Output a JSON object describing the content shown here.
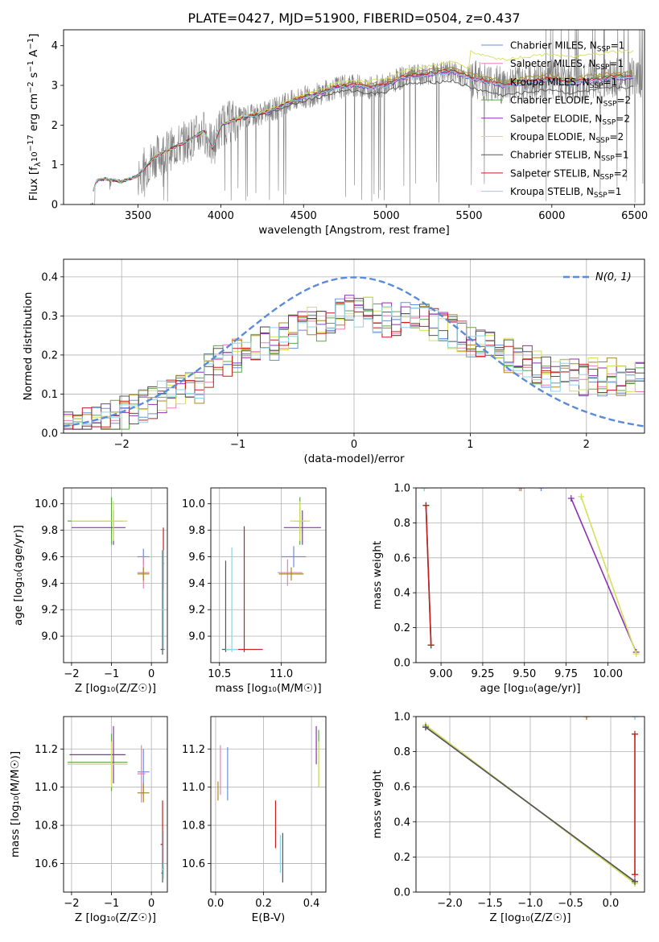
{
  "figure": {
    "title": "PLATE=0427, MJD=51900, FIBERID=0504, z=0.437"
  },
  "models": [
    {
      "name": "Chabrier MILES",
      "nssp": "1",
      "color": "#6a8fd8"
    },
    {
      "name": "Salpeter MILES",
      "nssp": "1",
      "color": "#e87fb6"
    },
    {
      "name": "Kroupa MILES",
      "nssp": "1",
      "color": "#a8892a"
    },
    {
      "name": "Chabrier ELODIE",
      "nssp": "2",
      "color": "#5aaa4a"
    },
    {
      "name": "Salpeter ELODIE",
      "nssp": "2",
      "color": "#8b2fb5"
    },
    {
      "name": "Kroupa ELODIE",
      "nssp": "2",
      "color": "#d4e05a"
    },
    {
      "name": "Chabrier STELIB",
      "nssp": "1",
      "color": "#555555"
    },
    {
      "name": "Salpeter STELIB",
      "nssp": "2",
      "color": "#c81e1e"
    },
    {
      "name": "Kroupa STELIB",
      "nssp": "1",
      "color": "#8fd3e6"
    }
  ],
  "chart_data": [
    {
      "id": "spectrum",
      "type": "line",
      "xlabel": "wavelength [Angstrom, rest frame]",
      "ylabel_main": "Flux [f",
      "ylabel_sub": "λ",
      "ylabel_rest": "10",
      "ylabel_exp1": "−17",
      "ylabel_mid": " erg cm",
      "ylabel_exp2": "−2",
      "ylabel_s": " s",
      "ylabel_exp3": "−1",
      "ylabel_A": " A",
      "ylabel_exp4": "−1",
      "ylabel_end": "]",
      "xlim": [
        3050,
        6560
      ],
      "ylim": [
        0,
        4.4
      ],
      "xticks": [
        "3500",
        "4000",
        "4500",
        "5000",
        "5500",
        "6000",
        "6500"
      ],
      "yticks": [
        "0",
        "1",
        "2",
        "3",
        "4"
      ],
      "data_color": "#808080",
      "data_range": [
        3200,
        6550
      ],
      "model_curve": {
        "x": [
          3200,
          3250,
          3300,
          3400,
          3500,
          3600,
          3700,
          3800,
          3900,
          3950,
          4000,
          4100,
          4200,
          4300,
          4400,
          4500,
          4600,
          4700,
          4800,
          4900,
          5000,
          5100,
          5200,
          5300,
          5400,
          5500,
          5600,
          5700,
          5800,
          5900,
          6000,
          6100,
          6200,
          6300,
          6400
        ],
        "y": [
          0.0,
          0.6,
          0.65,
          0.58,
          0.72,
          1.2,
          1.4,
          1.6,
          1.85,
          1.4,
          2.0,
          2.15,
          2.25,
          2.35,
          2.55,
          2.7,
          2.8,
          2.95,
          3.0,
          2.95,
          3.0,
          3.2,
          3.25,
          3.3,
          3.35,
          3.2,
          3.1,
          3.0,
          3.05,
          3.1,
          3.15,
          3.05,
          3.1,
          3.15,
          3.2
        ]
      },
      "legend_position": "upper right"
    },
    {
      "id": "residuals",
      "type": "step",
      "xlabel": "(data-model)/error",
      "ylabel": "Normed distribution",
      "xlim": [
        -2.5,
        2.5
      ],
      "ylim": [
        0,
        0.445
      ],
      "xticks": [
        "−2",
        "−1",
        "0",
        "1",
        "2"
      ],
      "xtick_values": [
        -2,
        -1,
        0,
        1,
        2
      ],
      "yticks": [
        "0.0",
        "0.1",
        "0.2",
        "0.3",
        "0.4"
      ],
      "ytick_values": [
        0,
        0.1,
        0.2,
        0.3,
        0.4
      ],
      "gaussian_label": "N(0, 1)",
      "gaussian_color": "#5b8bd8",
      "base_histogram": [
        0.02,
        0.02,
        0.03,
        0.03,
        0.04,
        0.04,
        0.05,
        0.06,
        0.07,
        0.08,
        0.09,
        0.1,
        0.12,
        0.13,
        0.12,
        0.16,
        0.18,
        0.19,
        0.2,
        0.21,
        0.22,
        0.24,
        0.23,
        0.25,
        0.26,
        0.27,
        0.28,
        0.27,
        0.29,
        0.3,
        0.31,
        0.3,
        0.32,
        0.3,
        0.29,
        0.28,
        0.31,
        0.3,
        0.29,
        0.28,
        0.27,
        0.26,
        0.25,
        0.24,
        0.23,
        0.22,
        0.21,
        0.2,
        0.19,
        0.18,
        0.17,
        0.16,
        0.15,
        0.16,
        0.15,
        0.14,
        0.15,
        0.14,
        0.15,
        0.14,
        0.15,
        0.14
      ],
      "legend_position": "upper right"
    },
    {
      "id": "age-vs-Z",
      "type": "errorbar",
      "xlabel": "Z [log₁₀(Z/Z☉)]",
      "ylabel": "age  [log₁₀(age/yr)]",
      "xlim": [
        -2.2,
        0.4
      ],
      "ylim": [
        8.8,
        10.12
      ],
      "xticks": [
        "−2",
        "−1",
        "0"
      ],
      "xtick_values": [
        -2,
        -1,
        0
      ],
      "yticks": [
        "9.0",
        "9.2",
        "9.4",
        "9.6",
        "9.8",
        "10.0"
      ],
      "ytick_values": [
        9.0,
        9.2,
        9.4,
        9.6,
        9.8,
        10.0
      ],
      "points": [
        {
          "m": 0,
          "x": -0.2,
          "y": 9.6,
          "xerr": [
            0.15,
            0.15
          ],
          "yerr": [
            0.06,
            0.06
          ]
        },
        {
          "m": 1,
          "x": -0.2,
          "y": 9.48,
          "xerr": [
            0.15,
            0.15
          ],
          "yerr": [
            0.12,
            0.12
          ]
        },
        {
          "m": 2,
          "x": -0.2,
          "y": 9.47,
          "xerr": [
            0.15,
            0.15
          ],
          "yerr": [
            0.05,
            0.05
          ]
        },
        {
          "m": 3,
          "x": -1.0,
          "y": 9.87,
          "xerr": [
            1.1,
            0.3
          ],
          "yerr": [
            0.18,
            0.18
          ]
        },
        {
          "m": 4,
          "x": -0.95,
          "y": 9.82,
          "xerr": [
            1.05,
            0.3
          ],
          "yerr": [
            0.13,
            0.13
          ]
        },
        {
          "m": 5,
          "x": -0.95,
          "y": 9.87,
          "xerr": [
            1.05,
            0.35
          ],
          "yerr": [
            0.15,
            0.15
          ]
        },
        {
          "m": 6,
          "x": 0.28,
          "y": 8.9,
          "xerr": [
            0.05,
            0.05
          ],
          "yerr": [
            0.04,
            0.75
          ]
        },
        {
          "m": 7,
          "x": 0.3,
          "y": 9.55,
          "xerr": [
            0.02,
            0.02
          ],
          "yerr": [
            0.2,
            0.27
          ]
        },
        {
          "m": 8,
          "x": 0.3,
          "y": 9.2,
          "xerr": [
            0.03,
            0.03
          ],
          "yerr": [
            0.3,
            0.45
          ]
        }
      ]
    },
    {
      "id": "age-vs-mass",
      "type": "errorbar",
      "xlabel": "mass [log₁₀(M/M☉)]",
      "ylabel": "",
      "xlim": [
        10.43,
        11.36
      ],
      "ylim": [
        8.8,
        10.12
      ],
      "xticks": [
        "10.5",
        "11.0"
      ],
      "xtick_values": [
        10.5,
        11.0
      ],
      "yticks": [
        "9.0",
        "9.2",
        "9.4",
        "9.6",
        "9.8",
        "10.0"
      ],
      "ytick_values": [
        9.0,
        9.2,
        9.4,
        9.6,
        9.8,
        10.0
      ],
      "points": [
        {
          "m": 0,
          "x": 11.1,
          "y": 9.6,
          "xerr": [
            0.1,
            0.1
          ],
          "yerr": [
            0.08,
            0.08
          ]
        },
        {
          "m": 1,
          "x": 11.05,
          "y": 9.48,
          "xerr": [
            0.08,
            0.12
          ],
          "yerr": [
            0.1,
            0.1
          ]
        },
        {
          "m": 2,
          "x": 11.08,
          "y": 9.47,
          "xerr": [
            0.1,
            0.1
          ],
          "yerr": [
            0.05,
            0.05
          ]
        },
        {
          "m": 3,
          "x": 11.15,
          "y": 9.87,
          "xerr": [
            0.05,
            0.05
          ],
          "yerr": [
            0.18,
            0.18
          ]
        },
        {
          "m": 4,
          "x": 11.17,
          "y": 9.82,
          "xerr": [
            0.15,
            0.15
          ],
          "yerr": [
            0.13,
            0.13
          ]
        },
        {
          "m": 5,
          "x": 11.15,
          "y": 9.87,
          "xerr": [
            0.08,
            0.08
          ],
          "yerr": [
            0.15,
            0.15
          ]
        },
        {
          "m": 6,
          "x": 10.55,
          "y": 8.9,
          "xerr": [
            0.03,
            0.03
          ],
          "yerr": [
            0.02,
            0.67
          ]
        },
        {
          "m": 7,
          "x": 10.7,
          "y": 8.9,
          "xerr": [
            0.15,
            0.15
          ],
          "yerr": [
            0.02,
            0.93
          ]
        },
        {
          "m": 8,
          "x": 10.6,
          "y": 8.9,
          "xerr": [
            0.05,
            0.05
          ],
          "yerr": [
            0.02,
            0.77
          ]
        }
      ]
    },
    {
      "id": "massweight-vs-age",
      "type": "line",
      "xlabel": "age  [log₁₀(age/yr)]",
      "ylabel": "mass weight",
      "xlim": [
        8.85,
        10.22
      ],
      "ylim": [
        0,
        1
      ],
      "xticks": [
        "9.00",
        "9.25",
        "9.50",
        "9.75",
        "10.00"
      ],
      "xtick_values": [
        9.0,
        9.25,
        9.5,
        9.75,
        10.0
      ],
      "yticks": [
        "0.0",
        "0.2",
        "0.4",
        "0.6",
        "0.8",
        "1.0"
      ],
      "ytick_values": [
        0,
        0.2,
        0.4,
        0.6,
        0.8,
        1.0
      ],
      "series": [
        {
          "m": 0,
          "points": [
            [
              9.6,
              1.0
            ]
          ]
        },
        {
          "m": 1,
          "points": [
            [
              9.47,
              1.0
            ]
          ]
        },
        {
          "m": 2,
          "points": [
            [
              9.48,
              1.0
            ]
          ]
        },
        {
          "m": 3,
          "points": [
            [
              8.9,
              1.0
            ]
          ]
        },
        {
          "m": 4,
          "points": [
            [
              9.78,
              0.94
            ],
            [
              10.17,
              0.06
            ]
          ]
        },
        {
          "m": 5,
          "points": [
            [
              9.84,
              0.95
            ],
            [
              10.17,
              0.05
            ]
          ]
        },
        {
          "m": 6,
          "points": [
            [
              8.91,
              0.9
            ],
            [
              8.94,
              0.1
            ]
          ]
        },
        {
          "m": 7,
          "points": [
            [
              8.91,
              0.9
            ],
            [
              8.94,
              0.1
            ]
          ]
        },
        {
          "m": 8,
          "points": [
            [
              8.9,
              1.0
            ]
          ]
        }
      ]
    },
    {
      "id": "mass-vs-Z",
      "type": "errorbar",
      "xlabel": "Z [log₁₀(Z/Z☉)]",
      "ylabel": "mass [log₁₀(M/M☉)]",
      "xlim": [
        -2.2,
        0.4
      ],
      "ylim": [
        10.45,
        11.37
      ],
      "xticks": [
        "−2",
        "−1",
        "0"
      ],
      "xtick_values": [
        -2,
        -1,
        0
      ],
      "yticks": [
        "10.6",
        "10.8",
        "11.0",
        "11.2"
      ],
      "ytick_values": [
        10.6,
        10.8,
        11.0,
        11.2
      ],
      "points": [
        {
          "m": 0,
          "x": -0.2,
          "y": 11.08,
          "xerr": [
            0.15,
            0.15
          ],
          "yerr": [
            0.12,
            0.12
          ]
        },
        {
          "m": 1,
          "x": -0.25,
          "y": 11.07,
          "xerr": [
            0.1,
            0.1
          ],
          "yerr": [
            0.15,
            0.15
          ]
        },
        {
          "m": 2,
          "x": -0.2,
          "y": 10.97,
          "xerr": [
            0.15,
            0.15
          ],
          "yerr": [
            0.05,
            0.05
          ]
        },
        {
          "m": 3,
          "x": -1.0,
          "y": 11.13,
          "xerr": [
            1.1,
            0.4
          ],
          "yerr": [
            0.15,
            0.15
          ]
        },
        {
          "m": 4,
          "x": -0.95,
          "y": 11.17,
          "xerr": [
            1.1,
            0.3
          ],
          "yerr": [
            0.15,
            0.15
          ]
        },
        {
          "m": 5,
          "x": -1.0,
          "y": 11.12,
          "xerr": [
            1.1,
            0.4
          ],
          "yerr": [
            0.12,
            0.12
          ]
        },
        {
          "m": 6,
          "x": 0.28,
          "y": 10.55,
          "xerr": [
            0.03,
            0.03
          ],
          "yerr": [
            0.05,
            0.05
          ]
        },
        {
          "m": 7,
          "x": 0.28,
          "y": 10.7,
          "xerr": [
            0.05,
            0.02
          ],
          "yerr": [
            0.1,
            0.23
          ]
        },
        {
          "m": 8,
          "x": 0.3,
          "y": 10.57,
          "xerr": [
            0.05,
            0.02
          ],
          "yerr": [
            0.05,
            0.2
          ]
        }
      ]
    },
    {
      "id": "mass-vs-ebv",
      "type": "errorbar",
      "xlabel": "E(B-V)",
      "ylabel": "",
      "xlim": [
        -0.02,
        0.46
      ],
      "ylim": [
        10.45,
        11.37
      ],
      "xticks": [
        "0.0",
        "0.2",
        "0.4"
      ],
      "xtick_values": [
        0.0,
        0.2,
        0.4
      ],
      "yticks": [
        "10.6",
        "10.8",
        "11.0",
        "11.2"
      ],
      "ytick_values": [
        10.6,
        10.8,
        11.0,
        11.2
      ],
      "points": [
        {
          "m": 0,
          "x": 0.05,
          "y": 11.08,
          "xerr": [
            0,
            0
          ],
          "yerr": [
            0.15,
            0.13
          ]
        },
        {
          "m": 1,
          "x": 0.02,
          "y": 11.08,
          "xerr": [
            0,
            0
          ],
          "yerr": [
            0.12,
            0.14
          ]
        },
        {
          "m": 2,
          "x": 0.01,
          "y": 10.98,
          "xerr": [
            0,
            0
          ],
          "yerr": [
            0.05,
            0.05
          ]
        },
        {
          "m": 3,
          "x": 0.43,
          "y": 11.15,
          "xerr": [
            0,
            0
          ],
          "yerr": [
            0.15,
            0.15
          ]
        },
        {
          "m": 4,
          "x": 0.42,
          "y": 11.22,
          "xerr": [
            0,
            0
          ],
          "yerr": [
            0.1,
            0.1
          ]
        },
        {
          "m": 5,
          "x": 0.43,
          "y": 11.12,
          "xerr": [
            0,
            0
          ],
          "yerr": [
            0.12,
            0.12
          ]
        },
        {
          "m": 6,
          "x": 0.28,
          "y": 10.63,
          "xerr": [
            0,
            0
          ],
          "yerr": [
            0.13,
            0.13
          ]
        },
        {
          "m": 7,
          "x": 0.25,
          "y": 10.8,
          "xerr": [
            0,
            0
          ],
          "yerr": [
            0.12,
            0.13
          ]
        },
        {
          "m": 8,
          "x": 0.27,
          "y": 10.65,
          "xerr": [
            0,
            0
          ],
          "yerr": [
            0.1,
            0.1
          ]
        }
      ]
    },
    {
      "id": "massweight-vs-Z",
      "type": "line",
      "xlabel": "Z [log₁₀(Z/Z☉)]",
      "ylabel": "mass weight",
      "xlim": [
        -2.42,
        0.42
      ],
      "ylim": [
        0,
        1
      ],
      "xticks": [
        "−2.0",
        "−1.5",
        "−1.0",
        "−0.5",
        "0.0"
      ],
      "xtick_values": [
        -2.0,
        -1.5,
        -1.0,
        -0.5,
        0.0
      ],
      "yticks": [
        "0.0",
        "0.2",
        "0.4",
        "0.6",
        "0.8",
        "1.0"
      ],
      "ytick_values": [
        0,
        0.2,
        0.4,
        0.6,
        0.8,
        1.0
      ],
      "series": [
        {
          "m": 0,
          "points": [
            [
              0.3,
              1.0
            ]
          ]
        },
        {
          "m": 1,
          "points": [
            [
              -0.3,
              1.0
            ]
          ]
        },
        {
          "m": 2,
          "points": [
            [
              -0.3,
              1.0
            ]
          ]
        },
        {
          "m": 3,
          "points": [
            [
              -2.3,
              0.95
            ],
            [
              0.3,
              0.05
            ]
          ]
        },
        {
          "m": 4,
          "points": [
            [
              -2.3,
              0.94
            ],
            [
              0.3,
              0.06
            ]
          ]
        },
        {
          "m": 5,
          "points": [
            [
              -2.3,
              0.95
            ],
            [
              0.3,
              0.05
            ]
          ]
        },
        {
          "m": 6,
          "points": [
            [
              -2.3,
              0.94
            ],
            [
              0.3,
              0.06
            ]
          ]
        },
        {
          "m": 7,
          "points": [
            [
              0.3,
              0.9
            ],
            [
              0.3,
              0.1
            ]
          ]
        },
        {
          "m": 8,
          "points": [
            [
              0.3,
              1.0
            ]
          ]
        }
      ]
    }
  ]
}
